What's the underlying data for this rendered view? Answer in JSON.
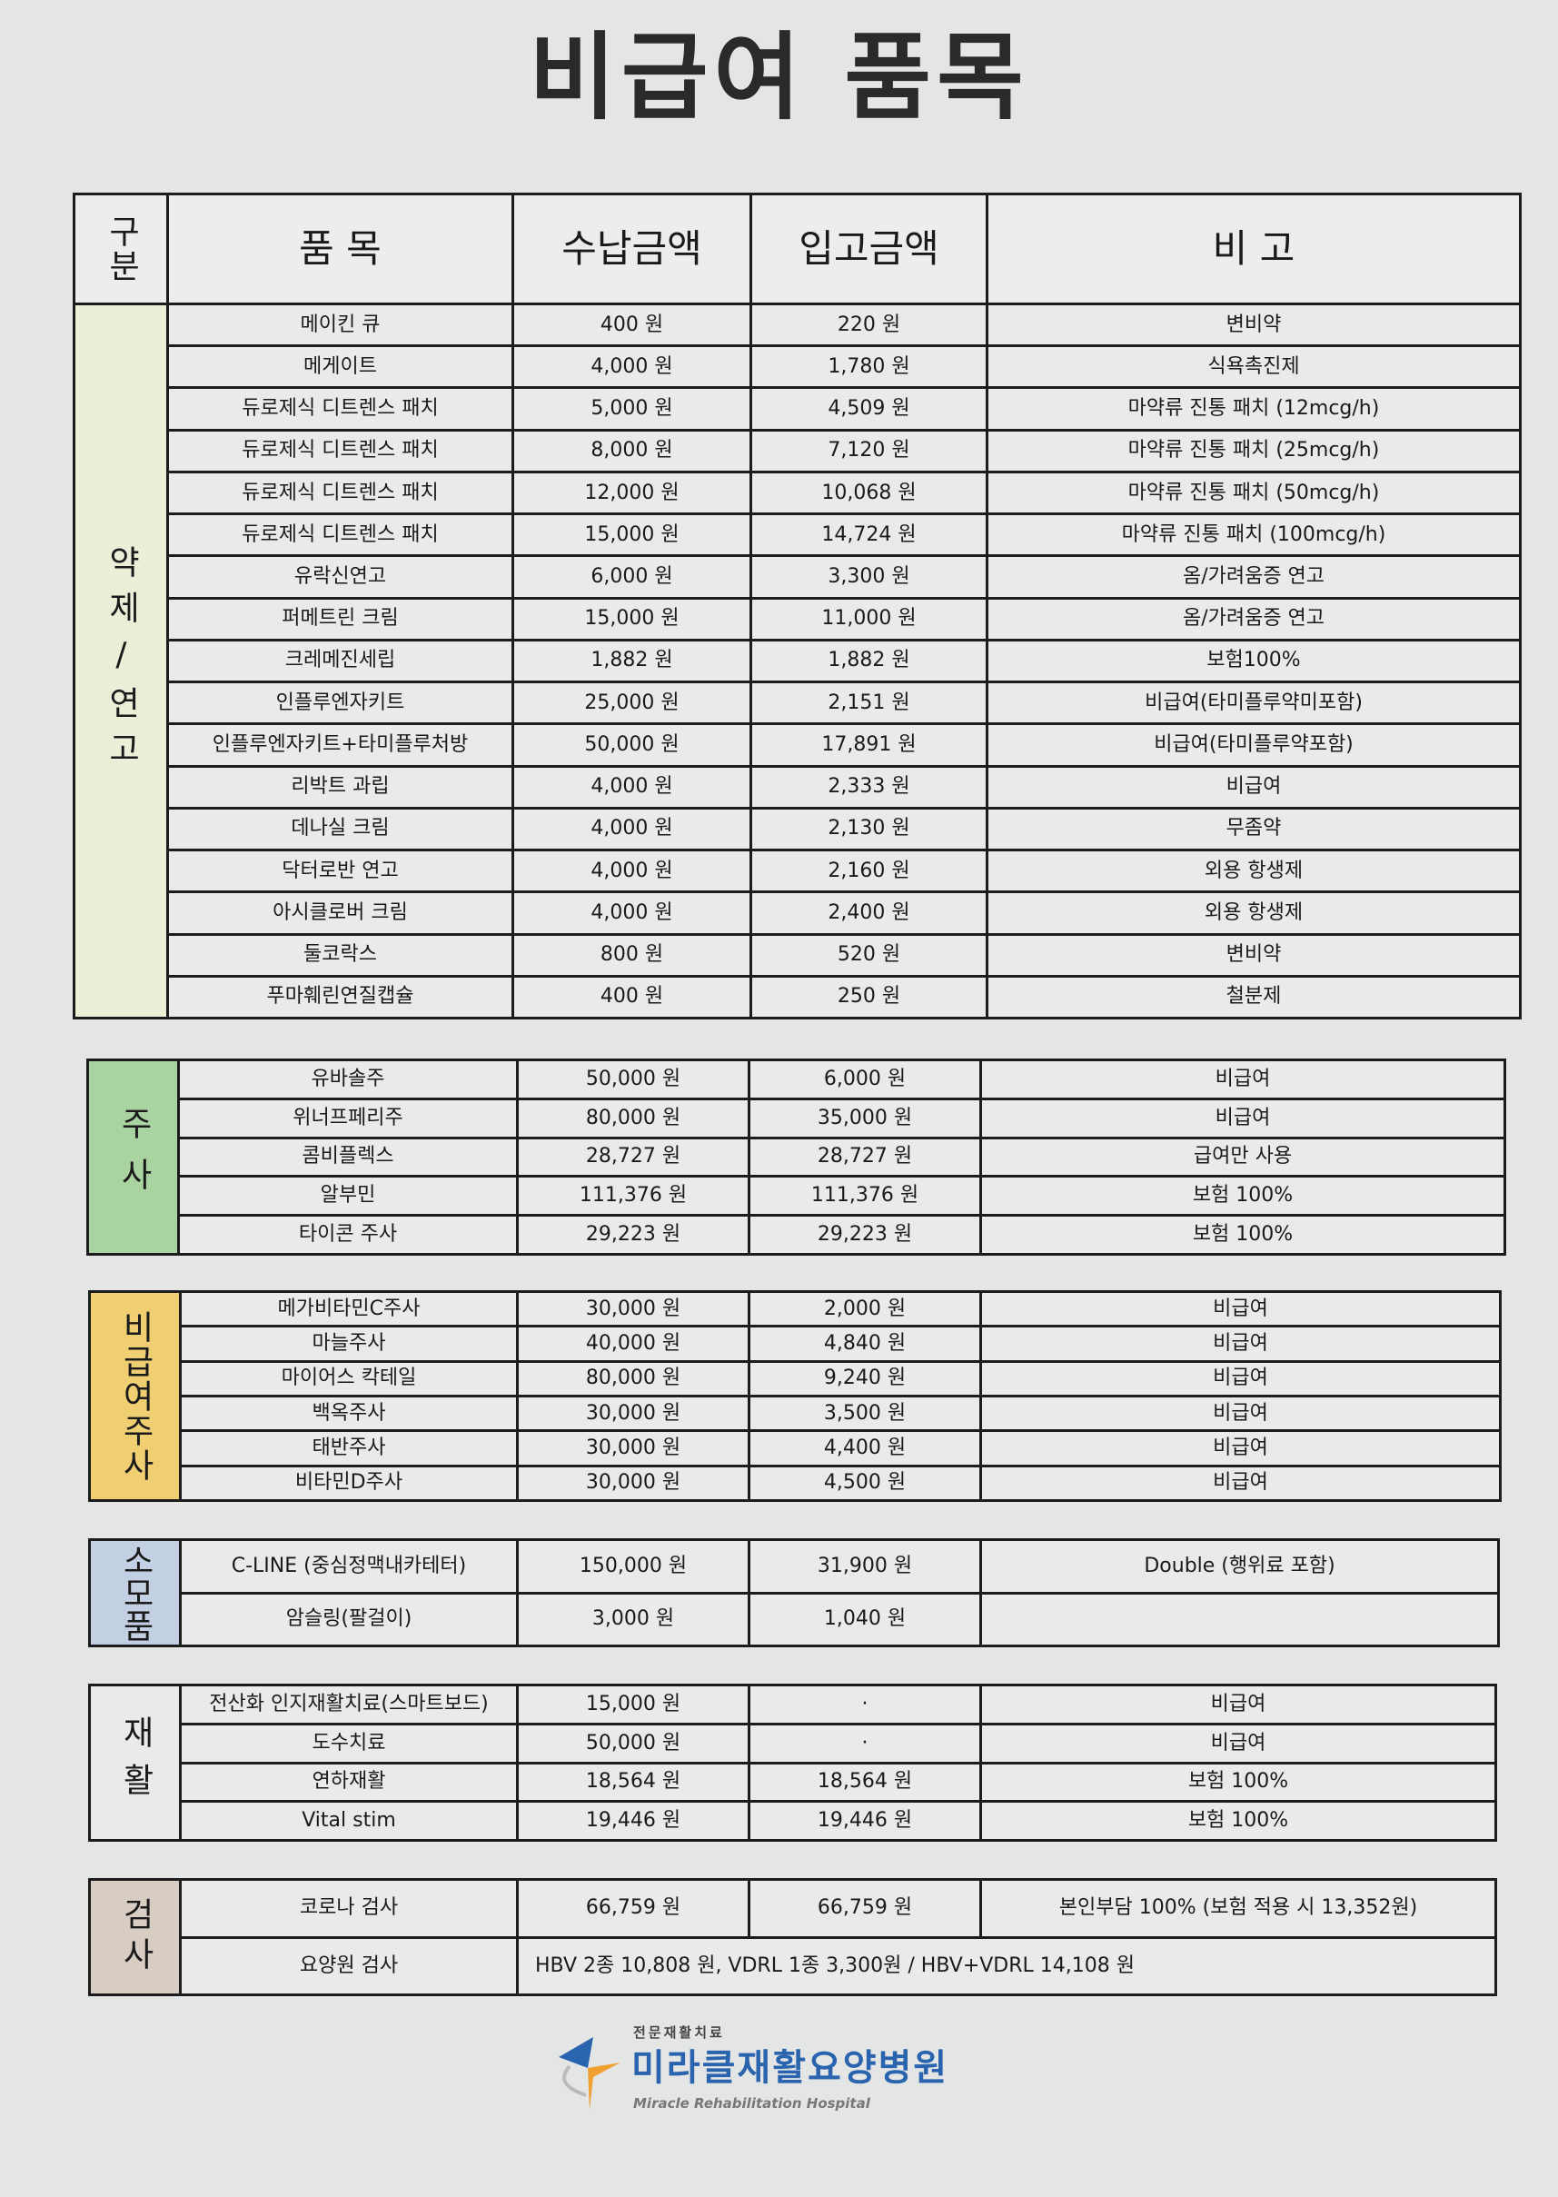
{
  "title": "비급여 품목",
  "header": {
    "category": "구분",
    "item": "품 목",
    "paid": "수납금액",
    "cost": "입고금액",
    "note": "비 고"
  },
  "colors": {
    "drugs": "#eceed8",
    "injection": "#a9d3a0",
    "noncovered_injection": "#f0cf72",
    "supplies": "#c3d0e4",
    "rehab": "#e9ebeb",
    "tests": "#d8cdc2",
    "logo_blue": "#2a64ae",
    "logo_orange": "#f0a030"
  },
  "sections": [
    {
      "category": "약제/연고",
      "rows": [
        [
          "메이킨 큐",
          "400 원",
          "220 원",
          "변비약"
        ],
        [
          "메게이트",
          "4,000 원",
          "1,780 원",
          "식욕촉진제"
        ],
        [
          "듀로제식 디트렌스 패치",
          "5,000 원",
          "4,509 원",
          "마약류 진통 패치 (12mcg/h)"
        ],
        [
          "듀로제식 디트렌스 패치",
          "8,000 원",
          "7,120 원",
          "마약류 진통 패치 (25mcg/h)"
        ],
        [
          "듀로제식 디트렌스 패치",
          "12,000 원",
          "10,068 원",
          "마약류 진통 패치 (50mcg/h)"
        ],
        [
          "듀로제식 디트렌스 패치",
          "15,000 원",
          "14,724 원",
          "마약류 진통 패치 (100mcg/h)"
        ],
        [
          "유락신연고",
          "6,000 원",
          "3,300 원",
          "옴/가려움증 연고"
        ],
        [
          "퍼메트린 크림",
          "15,000 원",
          "11,000 원",
          "옴/가려움증 연고"
        ],
        [
          "크레메진세립",
          "1,882 원",
          "1,882 원",
          "보험100%"
        ],
        [
          "인플루엔자키트",
          "25,000 원",
          "2,151 원",
          "비급여(타미플루약미포함)"
        ],
        [
          "인플루엔자키트+타미플루처방",
          "50,000 원",
          "17,891 원",
          "비급여(타미플루약포함)"
        ],
        [
          "리박트 과립",
          "4,000 원",
          "2,333 원",
          "비급여"
        ],
        [
          "데나실 크림",
          "4,000 원",
          "2,130 원",
          "무좀약"
        ],
        [
          "닥터로반 연고",
          "4,000 원",
          "2,160 원",
          "외용 항생제"
        ],
        [
          "아시클로버 크림",
          "4,000 원",
          "2,400 원",
          "외용 항생제"
        ],
        [
          "둘코락스",
          "800 원",
          "520 원",
          "변비약"
        ],
        [
          "푸마훼린연질캡슐",
          "400 원",
          "250 원",
          "철분제"
        ]
      ]
    },
    {
      "category": "주사",
      "rows": [
        [
          "유바솔주",
          "50,000 원",
          "6,000 원",
          "비급여"
        ],
        [
          "위너프페리주",
          "80,000 원",
          "35,000 원",
          "비급여"
        ],
        [
          "콤비플렉스",
          "28,727 원",
          "28,727 원",
          "급여만 사용"
        ],
        [
          "알부민",
          "111,376 원",
          "111,376 원",
          "보험 100%"
        ],
        [
          "타이콘 주사",
          "29,223 원",
          "29,223 원",
          "보험 100%"
        ]
      ]
    },
    {
      "category": "비급여주사",
      "rows": [
        [
          "메가비타민C주사",
          "30,000 원",
          "2,000 원",
          "비급여"
        ],
        [
          "마늘주사",
          "40,000 원",
          "4,840 원",
          "비급여"
        ],
        [
          "마이어스 칵테일",
          "80,000 원",
          "9,240 원",
          "비급여"
        ],
        [
          "백옥주사",
          "30,000 원",
          "3,500 원",
          "비급여"
        ],
        [
          "태반주사",
          "30,000 원",
          "4,400 원",
          "비급여"
        ],
        [
          "비타민D주사",
          "30,000 원",
          "4,500 원",
          "비급여"
        ]
      ]
    },
    {
      "category": "소모품",
      "rows": [
        [
          "C-LINE (중심정맥내카테터)",
          "150,000 원",
          "31,900 원",
          "Double (행위료 포함)"
        ],
        [
          "암슬링(팔걸이)",
          "3,000 원",
          "1,040 원",
          ""
        ]
      ]
    },
    {
      "category": "재활",
      "rows": [
        [
          "전산화 인지재활치료(스마트보드)",
          "15,000 원",
          "·",
          "비급여"
        ],
        [
          "도수치료",
          "50,000 원",
          "·",
          "비급여"
        ],
        [
          "연하재활",
          "18,564 원",
          "18,564 원",
          "보험 100%"
        ],
        [
          "Vital stim",
          "19,446 원",
          "19,446 원",
          "보험 100%"
        ]
      ]
    },
    {
      "category": "검사",
      "rows": [
        [
          "코로나 검사",
          "66,759 원",
          "66,759 원",
          "본인부담 100% (보험 적용 시 13,352원)"
        ],
        [
          "요양원 검사",
          "HBV 2종 10,808 원, VDRL 1종 3,300원 / HBV+VDRL 14,108 원"
        ]
      ]
    }
  ],
  "footer": {
    "logo_subtitle": "전문재활치료",
    "logo_name": "미라클재활요양병원",
    "logo_english": "Miracle Rehabilitation Hospital"
  }
}
